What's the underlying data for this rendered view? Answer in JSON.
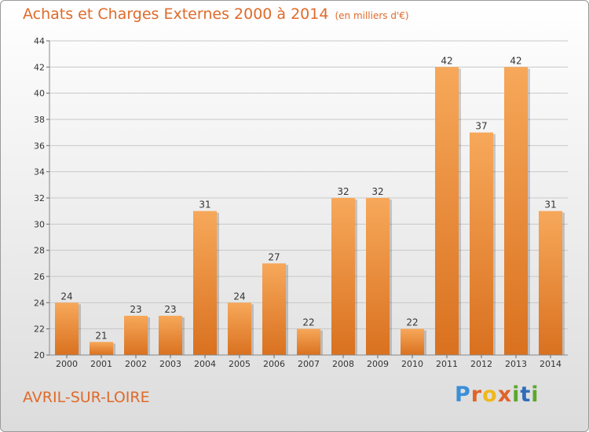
{
  "title": "Achats et Charges Externes 2000 à 2014",
  "unit": "(en milliers d'€)",
  "place": "AVRIL-SUR-LOIRE",
  "logo": "Proxiti",
  "colors": {
    "bar_light": "#f7a85a",
    "bar_dark": "#d9711f",
    "title": "#e06a2a"
  },
  "chart_data": {
    "type": "bar",
    "title": "Achats et Charges Externes 2000 à 2014",
    "xlabel": "",
    "ylabel": "",
    "categories": [
      "2000",
      "2001",
      "2002",
      "2003",
      "2004",
      "2005",
      "2006",
      "2007",
      "2008",
      "2009",
      "2010",
      "2011",
      "2012",
      "2013",
      "2014"
    ],
    "values": [
      24,
      21,
      23,
      23,
      31,
      24,
      27,
      22,
      32,
      32,
      22,
      42,
      37,
      42,
      31
    ],
    "ylim": [
      20,
      44
    ],
    "yticks": [
      20,
      22,
      24,
      26,
      28,
      30,
      32,
      34,
      36,
      38,
      40,
      42,
      44
    ],
    "grid": true,
    "legend": "none"
  }
}
